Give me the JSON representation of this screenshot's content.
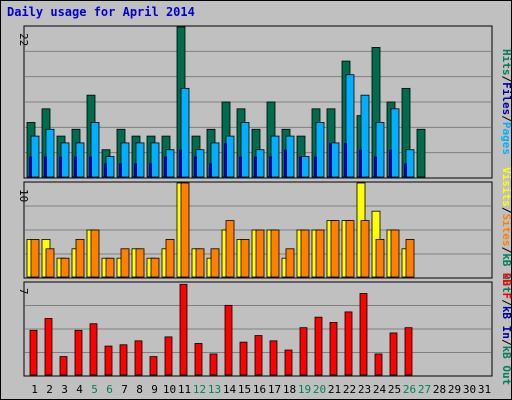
{
  "title": "Daily usage for April 2014",
  "colors": {
    "background": "#c0c0c0",
    "grid": "#808080",
    "hits": "#006c4e",
    "files": "#00b0ff",
    "pages": "#0000a0",
    "visits": "#ffff00",
    "sites": "#ff8000",
    "kbytes": "#ff0000",
    "title": "#0000cc",
    "weekend_day": "#00805c",
    "weekday": "#000000"
  },
  "chart_data": [
    {
      "type": "bar",
      "panel": "top",
      "ymax_label": "22",
      "legend": [
        {
          "text": "Hits",
          "color": "#00805c"
        },
        {
          "text": "/",
          "color": "#000000"
        },
        {
          "text": "Files",
          "color": "#0000a0"
        },
        {
          "text": "/",
          "color": "#000000"
        },
        {
          "text": "Pages",
          "color": "#00b0ff"
        }
      ],
      "ymax": 22,
      "categories": [
        "1",
        "2",
        "3",
        "4",
        "5",
        "6",
        "7",
        "8",
        "9",
        "10",
        "11",
        "12",
        "13",
        "14",
        "15",
        "16",
        "17",
        "18",
        "19",
        "20",
        "21",
        "22",
        "23",
        "24",
        "25",
        "26",
        "27",
        "28",
        "29",
        "30",
        "31"
      ],
      "series": [
        {
          "name": "Hits",
          "values": [
            8,
            10,
            6,
            7,
            12,
            4,
            7,
            6,
            6,
            6,
            22,
            6,
            7,
            11,
            10,
            7,
            11,
            7,
            6,
            10,
            10,
            17,
            9,
            19,
            11,
            13,
            7,
            0,
            0,
            0,
            0
          ]
        },
        {
          "name": "Files",
          "values": [
            6,
            7,
            5,
            5,
            8,
            3,
            5,
            5,
            5,
            4,
            13,
            4,
            5,
            6,
            8,
            4,
            6,
            6,
            3,
            8,
            5,
            15,
            12,
            8,
            10,
            4,
            0,
            0,
            0,
            0,
            0
          ]
        },
        {
          "name": "Pages",
          "values": [
            3,
            3,
            3,
            3,
            3,
            2,
            2,
            2,
            2,
            3,
            4,
            3,
            2,
            5,
            3,
            3,
            3,
            4,
            3,
            3,
            5,
            5,
            4,
            3,
            4,
            2,
            0,
            0,
            0,
            0,
            0
          ]
        }
      ]
    },
    {
      "type": "bar",
      "panel": "middle",
      "ymax_label": "10",
      "legend": [
        {
          "text": "Visits",
          "color": "#ffff00"
        },
        {
          "text": "/",
          "color": "#000000"
        },
        {
          "text": "Sites",
          "color": "#ff8000"
        },
        {
          "text": "/",
          "color": "#000000"
        },
        {
          "text": "kB Out",
          "color": "#00805c"
        }
      ],
      "ymax": 10,
      "categories": [
        "1",
        "2",
        "3",
        "4",
        "5",
        "6",
        "7",
        "8",
        "9",
        "10",
        "11",
        "12",
        "13",
        "14",
        "15",
        "16",
        "17",
        "18",
        "19",
        "20",
        "21",
        "22",
        "23",
        "24",
        "25",
        "26",
        "27",
        "28",
        "29",
        "30",
        "31"
      ],
      "series": [
        {
          "name": "Visits",
          "values": [
            4,
            4,
            2,
            3,
            5,
            2,
            2,
            3,
            2,
            3,
            10,
            3,
            2,
            5,
            4,
            5,
            5,
            2,
            5,
            5,
            6,
            6,
            10,
            7,
            5,
            3,
            0,
            0,
            0,
            0,
            0
          ]
        },
        {
          "name": "Sites",
          "values": [
            4,
            3,
            2,
            4,
            5,
            2,
            3,
            3,
            2,
            4,
            10,
            3,
            3,
            6,
            4,
            5,
            5,
            3,
            5,
            5,
            6,
            6,
            6,
            4,
            5,
            4,
            0,
            0,
            0,
            0,
            0
          ]
        }
      ]
    },
    {
      "type": "bar",
      "panel": "bottom",
      "ymax_label": "7",
      "legend": [
        {
          "text": "kB F",
          "color": "#ff0000"
        },
        {
          "text": "/",
          "color": "#000000"
        },
        {
          "text": "kB In",
          "color": "#0000a0"
        },
        {
          "text": "/",
          "color": "#000000"
        },
        {
          "text": "kB Out",
          "color": "#00805c"
        }
      ],
      "ymax": 7,
      "categories": [
        "1",
        "2",
        "3",
        "4",
        "5",
        "6",
        "7",
        "8",
        "9",
        "10",
        "11",
        "12",
        "13",
        "14",
        "15",
        "16",
        "17",
        "18",
        "19",
        "20",
        "21",
        "22",
        "23",
        "24",
        "25",
        "26",
        "27",
        "28",
        "29",
        "30",
        "31"
      ],
      "series": [
        {
          "name": "kB F",
          "values": [
            3.4,
            4.3,
            1.4,
            3.4,
            3.9,
            2.2,
            2.3,
            2.6,
            1.4,
            2.9,
            6.9,
            2.4,
            1.6,
            5.3,
            2.5,
            3,
            2.6,
            1.9,
            3.6,
            4.4,
            4,
            4.8,
            6.2,
            1.6,
            3.2,
            3.6,
            0,
            0,
            0,
            0,
            0
          ]
        }
      ]
    }
  ],
  "day_labels": [
    {
      "text": "1",
      "weekend": false
    },
    {
      "text": "2",
      "weekend": false
    },
    {
      "text": "3",
      "weekend": false
    },
    {
      "text": "4",
      "weekend": false
    },
    {
      "text": "5",
      "weekend": true
    },
    {
      "text": "6",
      "weekend": true
    },
    {
      "text": "7",
      "weekend": false
    },
    {
      "text": "8",
      "weekend": false
    },
    {
      "text": "9",
      "weekend": false
    },
    {
      "text": "10",
      "weekend": false
    },
    {
      "text": "11",
      "weekend": false
    },
    {
      "text": "12",
      "weekend": true
    },
    {
      "text": "13",
      "weekend": true
    },
    {
      "text": "14",
      "weekend": false
    },
    {
      "text": "15",
      "weekend": false
    },
    {
      "text": "16",
      "weekend": false
    },
    {
      "text": "17",
      "weekend": false
    },
    {
      "text": "18",
      "weekend": false
    },
    {
      "text": "19",
      "weekend": true
    },
    {
      "text": "20",
      "weekend": true
    },
    {
      "text": "21",
      "weekend": false
    },
    {
      "text": "22",
      "weekend": false
    },
    {
      "text": "23",
      "weekend": false
    },
    {
      "text": "24",
      "weekend": false
    },
    {
      "text": "25",
      "weekend": false
    },
    {
      "text": "26",
      "weekend": true
    },
    {
      "text": "27",
      "weekend": true
    },
    {
      "text": "28",
      "weekend": false
    },
    {
      "text": "29",
      "weekend": false
    },
    {
      "text": "30",
      "weekend": false
    },
    {
      "text": "31",
      "weekend": false
    }
  ]
}
